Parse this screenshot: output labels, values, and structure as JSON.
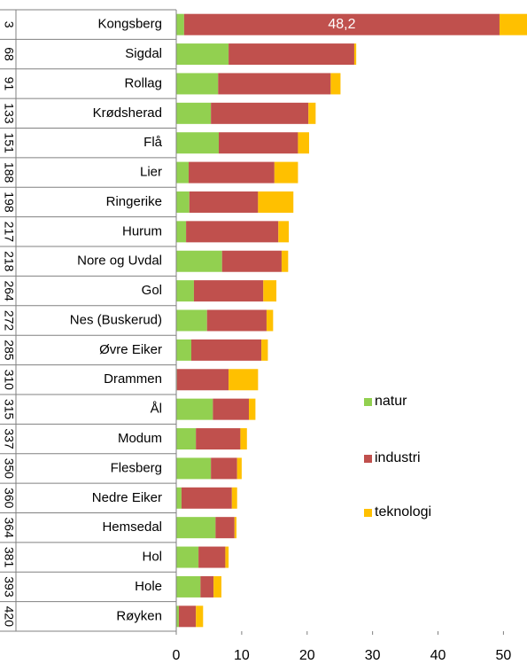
{
  "chart_data": {
    "type": "stacked-barh",
    "groups": [
      "3",
      "68",
      "91",
      "133",
      "151",
      "188",
      "198",
      "217",
      "218",
      "264",
      "272",
      "285",
      "310",
      "315",
      "337",
      "350",
      "360",
      "364",
      "381",
      "393",
      "420"
    ],
    "categories": [
      "Kongsberg",
      "Sigdal",
      "Rollag",
      "Krødsherad",
      "Flå",
      "Lier",
      "Ringerike",
      "Hurum",
      "Nore og Uvdal",
      "Gol",
      "Nes (Buskerud)",
      "Øvre Eiker",
      "Drammen",
      "Ål",
      "Modum",
      "Flesberg",
      "Nedre Eiker",
      "Hemsedal",
      "Hol",
      "Hole",
      "Røyken"
    ],
    "series": [
      {
        "name": "natur",
        "color": "#92d050",
        "values": [
          1.2,
          8.0,
          6.4,
          5.3,
          6.5,
          1.9,
          2.0,
          1.5,
          7.0,
          2.7,
          4.7,
          2.3,
          0.1,
          5.6,
          3.0,
          5.3,
          0.8,
          6.0,
          3.4,
          3.7,
          0.4
        ]
      },
      {
        "name": "industri",
        "color": "#c0504d",
        "values": [
          48.2,
          19.2,
          17.2,
          14.9,
          12.1,
          13.1,
          10.5,
          14.1,
          9.1,
          10.6,
          9.1,
          10.7,
          7.9,
          5.5,
          6.8,
          4.0,
          7.7,
          2.9,
          4.1,
          2.0,
          2.6
        ],
        "value_labels": [
          "48,2",
          null,
          null,
          null,
          null,
          null,
          null,
          null,
          null,
          null,
          null,
          null,
          null,
          null,
          null,
          null,
          null,
          null,
          null,
          null,
          null
        ]
      },
      {
        "name": "teknologi",
        "color": "#ffc000",
        "values": [
          4.2,
          0.3,
          1.5,
          1.1,
          1.7,
          3.6,
          5.4,
          1.6,
          1.0,
          2.0,
          1.0,
          1.0,
          4.5,
          1.0,
          1.0,
          0.7,
          0.8,
          0.3,
          0.5,
          1.2,
          1.1
        ]
      }
    ],
    "xlim": [
      0,
      53.6
    ],
    "xticks": [
      0,
      10,
      20,
      30,
      40,
      50
    ]
  }
}
